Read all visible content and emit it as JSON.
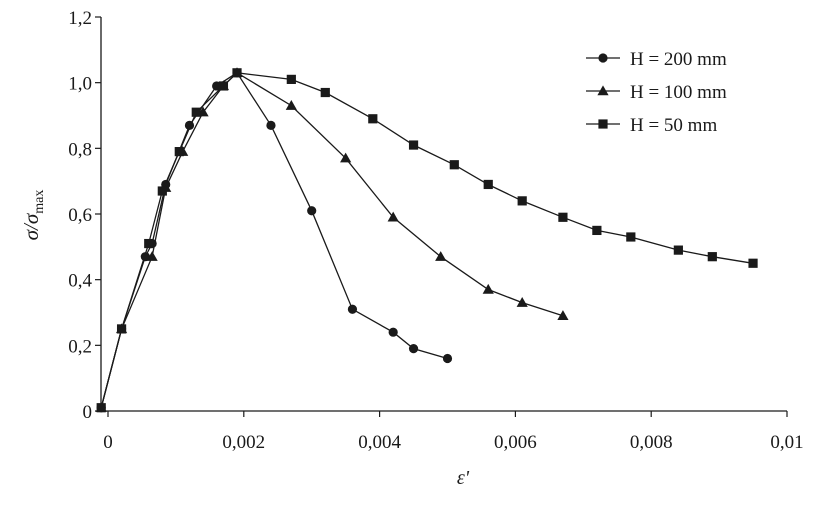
{
  "chart_data": {
    "type": "line",
    "xlabel": "ε'",
    "ylabel": {
      "main": "σ/σ",
      "sub": "max"
    },
    "xlim": [
      0,
      0.01
    ],
    "ylim": [
      0,
      1.2
    ],
    "x_ticks": [
      {
        "value": 0,
        "label": "0"
      },
      {
        "value": 0.002,
        "label": "0,002"
      },
      {
        "value": 0.004,
        "label": "0,004"
      },
      {
        "value": 0.006,
        "label": "0,006"
      },
      {
        "value": 0.008,
        "label": "0,008"
      },
      {
        "value": 0.01,
        "label": "0,01"
      }
    ],
    "y_ticks": [
      {
        "value": 0,
        "label": "0"
      },
      {
        "value": 0.2,
        "label": "0,2"
      },
      {
        "value": 0.4,
        "label": "0,4"
      },
      {
        "value": 0.6,
        "label": "0,6"
      },
      {
        "value": 0.8,
        "label": "0,8"
      },
      {
        "value": 1.0,
        "label": "1,0"
      },
      {
        "value": 1.2,
        "label": "1,2"
      }
    ],
    "grid": false,
    "legend_position": "top-right",
    "series": [
      {
        "name": "H = 200 mm",
        "marker": "circle",
        "color": "#1a1a1a",
        "x": [
          -0.0001,
          0.0002,
          0.00055,
          0.00065,
          0.00085,
          0.0012,
          0.0016,
          0.0019,
          0.0024,
          0.003,
          0.0036,
          0.0042,
          0.0045,
          0.005
        ],
        "y": [
          0.01,
          0.25,
          0.47,
          0.51,
          0.69,
          0.87,
          0.99,
          1.03,
          0.87,
          0.61,
          0.31,
          0.24,
          0.19,
          0.16
        ]
      },
      {
        "name": "H = 100 mm",
        "marker": "triangle",
        "color": "#1a1a1a",
        "x": [
          -0.0001,
          0.0002,
          0.00065,
          0.00085,
          0.0011,
          0.0014,
          0.0017,
          0.0019,
          0.0027,
          0.0035,
          0.0042,
          0.0049,
          0.0056,
          0.0061,
          0.0067
        ],
        "y": [
          0.01,
          0.25,
          0.47,
          0.68,
          0.79,
          0.91,
          0.99,
          1.03,
          0.93,
          0.77,
          0.59,
          0.47,
          0.37,
          0.33,
          0.29
        ]
      },
      {
        "name": "H = 50 mm",
        "marker": "square",
        "color": "#1a1a1a",
        "x": [
          -0.0001,
          0.0002,
          0.0006,
          0.0008,
          0.00105,
          0.0013,
          0.0017,
          0.0019,
          0.0027,
          0.0032,
          0.0039,
          0.0045,
          0.0051,
          0.0056,
          0.0061,
          0.0067,
          0.0072,
          0.0077,
          0.0084,
          0.0089,
          0.0095
        ],
        "y": [
          0.01,
          0.25,
          0.51,
          0.67,
          0.79,
          0.91,
          0.99,
          1.03,
          1.01,
          0.97,
          0.89,
          0.81,
          0.75,
          0.69,
          0.64,
          0.59,
          0.55,
          0.53,
          0.49,
          0.47,
          0.45
        ]
      }
    ]
  }
}
